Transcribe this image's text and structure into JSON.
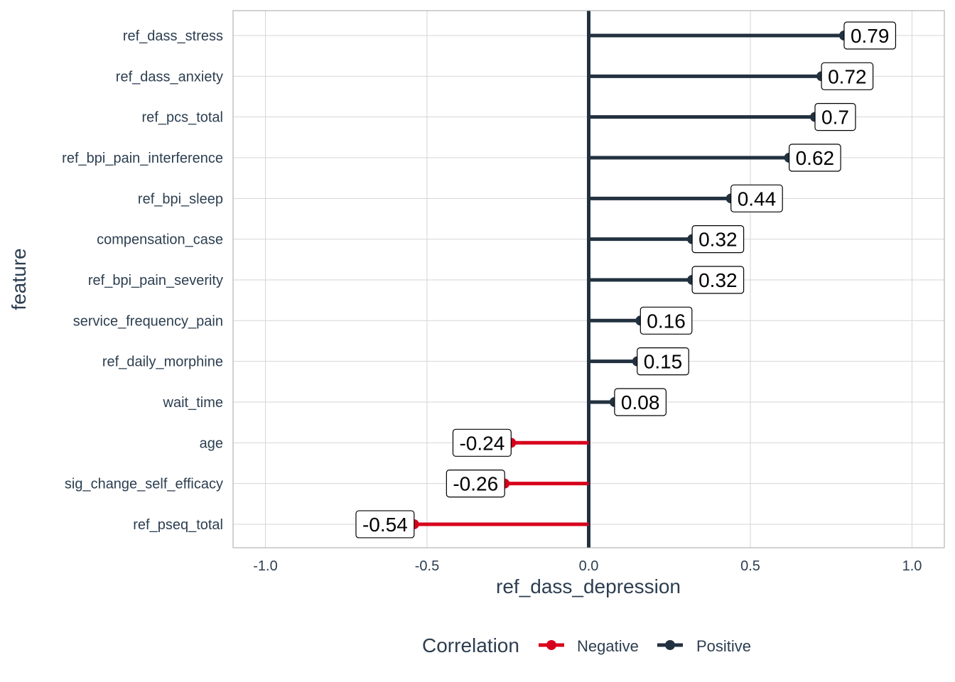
{
  "chart_data": {
    "type": "lollipop",
    "xlabel": "ref_dass_depression",
    "ylabel": "feature",
    "xlim": [
      -1.1,
      1.1
    ],
    "x_ticks": [
      -1.0,
      -0.5,
      0.0,
      0.5,
      1.0
    ],
    "x_tick_labels": [
      "-1.0",
      "-0.5",
      "0.0",
      "0.5",
      "1.0"
    ],
    "grid": true,
    "legend": {
      "title": "Correlation",
      "placement": "bottom",
      "entries": [
        {
          "name": "Negative",
          "color": "#d7001c"
        },
        {
          "name": "Positive",
          "color": "#22313f"
        }
      ]
    },
    "categories": [
      "ref_dass_stress",
      "ref_dass_anxiety",
      "ref_pcs_total",
      "ref_bpi_pain_interference",
      "ref_bpi_sleep",
      "compensation_case",
      "ref_bpi_pain_severity",
      "service_frequency_pain",
      "ref_daily_morphine",
      "wait_time",
      "age",
      "sig_change_self_efficacy",
      "ref_pseq_total"
    ],
    "values": [
      0.79,
      0.72,
      0.7,
      0.62,
      0.44,
      0.32,
      0.32,
      0.16,
      0.15,
      0.08,
      -0.24,
      -0.26,
      -0.54
    ],
    "value_labels": [
      "0.79",
      "0.72",
      "0.7",
      "0.62",
      "0.44",
      "0.32",
      "0.32",
      "0.16",
      "0.15",
      "0.08",
      "-0.24",
      "-0.26",
      "-0.54"
    ],
    "colors": {
      "negative": "#d7001c",
      "positive": "#22313f",
      "grid": "#d6d6d6",
      "border": "#a6a6a6",
      "text": "#2c3e50"
    }
  }
}
